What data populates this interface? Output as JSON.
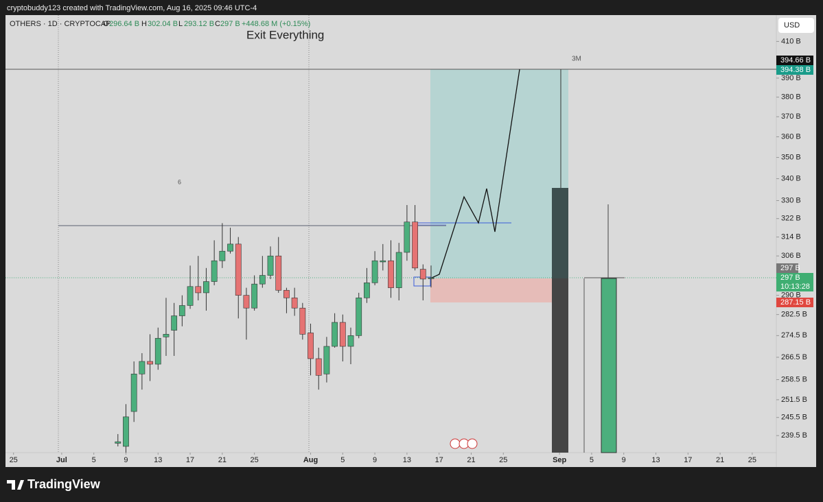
{
  "top_bar": {
    "caption": "cryptobuddy123 created with TradingView.com, Aug 16, 2025 09:46 UTC-4"
  },
  "header": {
    "symbol": "OTHERS · 1D · CRYPTOCAP",
    "open_label": "O",
    "open": "296.64 B",
    "high_label": "H",
    "high": "302.04 B",
    "low_label": "L",
    "low": "293.12 B",
    "close_label": "C",
    "close": "297 B",
    "change": "+448.68 M (+0.15%)"
  },
  "annotations": {
    "title": "Exit Everything",
    "range_label": "3M",
    "count_label": "6"
  },
  "currency": "USD",
  "price_tags": {
    "target_a": "394.66 B",
    "target_b": "394.38 B",
    "entry": "297 B",
    "last": "297 B",
    "countdown": "10:13:28",
    "stop": "287.15 B"
  },
  "footer": {
    "brand": "TradingView"
  },
  "chart_data": {
    "type": "candlestick",
    "log": true,
    "up_color": "#4caf7d",
    "down_color": "#e57373",
    "xlim": [
      "Jun 24",
      "Sep 28"
    ],
    "xticks": [
      {
        "value": "Jun 25",
        "label": "25"
      },
      {
        "value": "Jul 1",
        "label": "Jul"
      },
      {
        "value": "Jul 5",
        "label": "5"
      },
      {
        "value": "Jul 9",
        "label": "9"
      },
      {
        "value": "Jul 13",
        "label": "13"
      },
      {
        "value": "Jul 17",
        "label": "17"
      },
      {
        "value": "Jul 21",
        "label": "21"
      },
      {
        "value": "Jul 25",
        "label": "25"
      },
      {
        "value": "Aug 1",
        "label": "Aug"
      },
      {
        "value": "Aug 5",
        "label": "5"
      },
      {
        "value": "Aug 9",
        "label": "9"
      },
      {
        "value": "Aug 13",
        "label": "13"
      },
      {
        "value": "Aug 17",
        "label": "17"
      },
      {
        "value": "Aug 21",
        "label": "21"
      },
      {
        "value": "Aug 25",
        "label": "25"
      },
      {
        "value": "Sep 1",
        "label": "Sep"
      },
      {
        "value": "Sep 5",
        "label": "5"
      },
      {
        "value": "Sep 9",
        "label": "9"
      },
      {
        "value": "Sep 13",
        "label": "13"
      },
      {
        "value": "Sep 17",
        "label": "17"
      },
      {
        "value": "Sep 21",
        "label": "21"
      },
      {
        "value": "Sep 25",
        "label": "25"
      }
    ],
    "ylim": [
      234,
      425
    ],
    "yticks": [
      {
        "value": 410,
        "label": "410 B"
      },
      {
        "value": 390,
        "label": "390 B"
      },
      {
        "value": 380,
        "label": "380 B"
      },
      {
        "value": 370,
        "label": "370 B"
      },
      {
        "value": 360,
        "label": "360 B"
      },
      {
        "value": 350,
        "label": "350 B"
      },
      {
        "value": 340,
        "label": "340 B"
      },
      {
        "value": 330,
        "label": "330 B"
      },
      {
        "value": 322,
        "label": "322 B"
      },
      {
        "value": 314,
        "label": "314 B"
      },
      {
        "value": 306,
        "label": "306 B"
      },
      {
        "value": 290,
        "label": "290 B"
      },
      {
        "value": 282.5,
        "label": "282.5 B"
      },
      {
        "value": 274.5,
        "label": "274.5 B"
      },
      {
        "value": 266.5,
        "label": "266.5 B"
      },
      {
        "value": 258.5,
        "label": "258.5 B"
      },
      {
        "value": 251.5,
        "label": "251.5 B"
      },
      {
        "value": 245.5,
        "label": "245.5 B"
      },
      {
        "value": 239.5,
        "label": "239.5 B"
      }
    ],
    "candles": [
      {
        "x": "Jul 8",
        "open": 237,
        "high": 240,
        "low": 236,
        "close": 237.5
      },
      {
        "x": "Jul 9",
        "open": 236,
        "high": 250,
        "low": 234,
        "close": 245.7
      },
      {
        "x": "Jul 10",
        "open": 247.5,
        "high": 265,
        "low": 244,
        "close": 260.5
      },
      {
        "x": "Jul 11",
        "open": 260.5,
        "high": 268,
        "low": 255,
        "close": 265
      },
      {
        "x": "Jul 12",
        "open": 265,
        "high": 275,
        "low": 258,
        "close": 264
      },
      {
        "x": "Jul 13",
        "open": 264,
        "high": 277.5,
        "low": 262,
        "close": 273.5
      },
      {
        "x": "Jul 14",
        "open": 274,
        "high": 289,
        "low": 267,
        "close": 275
      },
      {
        "x": "Jul 15",
        "open": 276.5,
        "high": 287,
        "low": 267,
        "close": 282
      },
      {
        "x": "Jul 16",
        "open": 282,
        "high": 290,
        "low": 278,
        "close": 286
      },
      {
        "x": "Jul 17",
        "open": 286,
        "high": 302,
        "low": 284.7,
        "close": 293.5
      },
      {
        "x": "Jul 18",
        "open": 293.5,
        "high": 306,
        "low": 288,
        "close": 291
      },
      {
        "x": "Jul 19",
        "open": 291,
        "high": 301,
        "low": 284,
        "close": 295.5
      },
      {
        "x": "Jul 20",
        "open": 295.5,
        "high": 312.6,
        "low": 294,
        "close": 304
      },
      {
        "x": "Jul 21",
        "open": 304,
        "high": 320,
        "low": 301,
        "close": 308
      },
      {
        "x": "Jul 22",
        "open": 308,
        "high": 318,
        "low": 307,
        "close": 311
      },
      {
        "x": "Jul 23",
        "open": 311,
        "high": 314,
        "low": 281,
        "close": 290
      },
      {
        "x": "Jul 24",
        "open": 290,
        "high": 293,
        "low": 273,
        "close": 285
      },
      {
        "x": "Jul 25",
        "open": 285,
        "high": 298,
        "low": 284,
        "close": 294.5
      },
      {
        "x": "Jul 26",
        "open": 294.5,
        "high": 306,
        "low": 293,
        "close": 298
      },
      {
        "x": "Jul 27",
        "open": 298,
        "high": 310,
        "low": 296.5,
        "close": 306
      },
      {
        "x": "Jul 28",
        "open": 306,
        "high": 314,
        "low": 291,
        "close": 292
      },
      {
        "x": "Jul 29",
        "open": 292,
        "high": 293,
        "low": 283,
        "close": 289
      },
      {
        "x": "Jul 30",
        "open": 289,
        "high": 293,
        "low": 282,
        "close": 285
      },
      {
        "x": "Jul 31",
        "open": 285,
        "high": 287,
        "low": 273,
        "close": 275
      },
      {
        "x": "Aug 1",
        "open": 275.5,
        "high": 279,
        "low": 260,
        "close": 266
      },
      {
        "x": "Aug 2",
        "open": 266,
        "high": 270,
        "low": 255,
        "close": 260
      },
      {
        "x": "Aug 3",
        "open": 260.5,
        "high": 274,
        "low": 257.5,
        "close": 270.5
      },
      {
        "x": "Aug 4",
        "open": 270.5,
        "high": 283,
        "low": 270,
        "close": 279.5
      },
      {
        "x": "Aug 5",
        "open": 279.5,
        "high": 282.5,
        "low": 265,
        "close": 270.5
      },
      {
        "x": "Aug 6",
        "open": 270.5,
        "high": 277.5,
        "low": 264,
        "close": 274.5
      },
      {
        "x": "Aug 7",
        "open": 274.5,
        "high": 291,
        "low": 273.5,
        "close": 289
      },
      {
        "x": "Aug 8",
        "open": 289,
        "high": 301,
        "low": 287,
        "close": 295
      },
      {
        "x": "Aug 9",
        "open": 295,
        "high": 308,
        "low": 294,
        "close": 304
      },
      {
        "x": "Aug 10",
        "open": 303.5,
        "high": 311,
        "low": 300,
        "close": 304
      },
      {
        "x": "Aug 11",
        "open": 304,
        "high": 312.6,
        "low": 289,
        "close": 293
      },
      {
        "x": "Aug 12",
        "open": 293,
        "high": 311.5,
        "low": 288,
        "close": 307.5
      },
      {
        "x": "Aug 13",
        "open": 307.5,
        "high": 328,
        "low": 304,
        "close": 320.5
      },
      {
        "x": "Aug 14",
        "open": 320.5,
        "high": 328,
        "low": 300,
        "close": 301
      },
      {
        "x": "Aug 15",
        "open": 300.5,
        "high": 302.5,
        "low": 288,
        "close": 296.5
      },
      {
        "x": "Aug 16",
        "open": 296.64,
        "high": 302.04,
        "low": 293.12,
        "close": 297
      }
    ]
  }
}
